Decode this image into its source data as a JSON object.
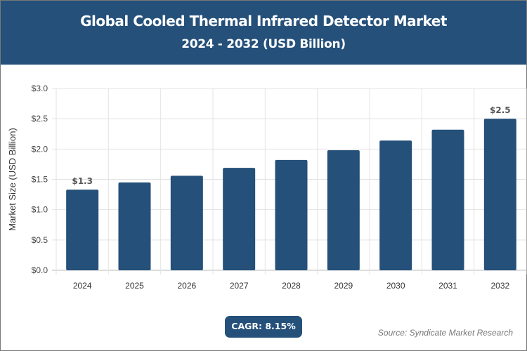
{
  "header": {
    "title": "Global Cooled Thermal Infrared Detector Market",
    "subtitle": "2024 - 2032 (USD Billion)"
  },
  "chart_data": {
    "type": "bar",
    "categories": [
      "2024",
      "2025",
      "2026",
      "2027",
      "2028",
      "2029",
      "2030",
      "2031",
      "2032"
    ],
    "values": [
      1.33,
      1.45,
      1.56,
      1.69,
      1.82,
      1.98,
      2.14,
      2.32,
      2.5
    ],
    "data_labels": {
      "0": "$1.3",
      "8": "$2.5"
    },
    "xlabel": "",
    "ylabel": "Market Size (USD Billion)",
    "ylim": [
      0,
      3.0
    ],
    "yticks": [
      "$0.0",
      "$0.5",
      "$1.0",
      "$1.5",
      "$2.0",
      "$2.5",
      "$3.0"
    ],
    "grid": true,
    "bar_color": "#24507a"
  },
  "footer": {
    "cagr": "CAGR: 8.15%",
    "source": "Source: Syndicate Market Research"
  }
}
